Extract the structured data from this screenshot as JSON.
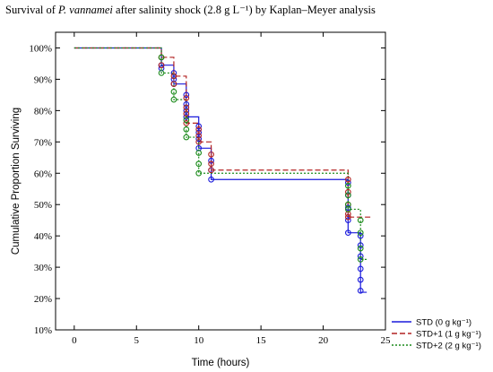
{
  "title": {
    "prefix": "Survival of ",
    "species": "P. vannamei",
    "suffix": " after salinity shock (2.8 g L⁻¹) by Kaplan–Meyer analysis"
  },
  "chart_data": {
    "type": "line",
    "subtype": "kaplan-meier step",
    "xlabel": "Time (hours)",
    "ylabel": "Cumulative Proportion Surviving",
    "xlim": [
      -1.5,
      25
    ],
    "ylim": [
      10,
      105
    ],
    "xticks": [
      0,
      5,
      10,
      15,
      20,
      25
    ],
    "yticks": [
      10,
      20,
      30,
      40,
      50,
      60,
      70,
      80,
      90,
      100
    ],
    "ytick_labels": [
      "10%",
      "20%",
      "30%",
      "40%",
      "50%",
      "60%",
      "70%",
      "80%",
      "90%",
      "100%"
    ],
    "grid": false,
    "legend_position": "bottom-right",
    "series": [
      {
        "name": "STD (0 g kg⁻¹)",
        "color": "#1a1adb",
        "line_style": "solid",
        "steps": [
          [
            0,
            100
          ],
          [
            7,
            94.5
          ],
          [
            8,
            88.5
          ],
          [
            9,
            78
          ],
          [
            10,
            68
          ],
          [
            11,
            58
          ],
          [
            22,
            41
          ],
          [
            23,
            22
          ]
        ],
        "end_x": 23.5,
        "markers": [
          [
            7,
            94.5
          ],
          [
            7,
            93.5
          ],
          [
            8,
            92
          ],
          [
            8,
            90
          ],
          [
            8,
            88.5
          ],
          [
            9,
            85
          ],
          [
            9,
            82
          ],
          [
            9,
            80
          ],
          [
            9,
            78
          ],
          [
            10,
            75
          ],
          [
            10,
            73
          ],
          [
            10,
            71
          ],
          [
            10,
            68
          ],
          [
            11,
            64
          ],
          [
            11,
            61
          ],
          [
            11,
            58
          ],
          [
            22,
            57
          ],
          [
            22,
            53
          ],
          [
            22,
            49
          ],
          [
            22,
            45
          ],
          [
            22,
            41
          ],
          [
            23,
            40
          ],
          [
            23,
            37
          ],
          [
            23,
            33.5
          ],
          [
            23,
            29.5
          ],
          [
            23,
            26
          ],
          [
            23,
            22.5
          ]
        ]
      },
      {
        "name": "STD+1 (1 g kg⁻¹)",
        "color": "#b22222",
        "line_style": "dashed",
        "steps": [
          [
            0,
            100
          ],
          [
            7,
            97
          ],
          [
            8,
            91
          ],
          [
            9,
            76
          ],
          [
            10,
            70
          ],
          [
            11,
            61
          ],
          [
            22,
            46
          ],
          [
            23,
            46
          ]
        ],
        "end_x": 24,
        "markers": [
          [
            7,
            97
          ],
          [
            7,
            94.5
          ],
          [
            8,
            91
          ],
          [
            8,
            88.5
          ],
          [
            9,
            84
          ],
          [
            9,
            81
          ],
          [
            9,
            79
          ],
          [
            9,
            76
          ],
          [
            10,
            74
          ],
          [
            10,
            72
          ],
          [
            10,
            70
          ],
          [
            11,
            66
          ],
          [
            11,
            63
          ],
          [
            11,
            61
          ],
          [
            22,
            58
          ],
          [
            22,
            54
          ],
          [
            22,
            50
          ],
          [
            22,
            47
          ],
          [
            22,
            46
          ]
        ]
      },
      {
        "name": "STD+2 (2 g kg⁻¹)",
        "color": "#1a8a1a",
        "line_style": "dotted",
        "steps": [
          [
            0,
            100
          ],
          [
            7,
            92
          ],
          [
            8,
            83.5
          ],
          [
            9,
            71.5
          ],
          [
            10,
            60
          ],
          [
            11,
            60
          ],
          [
            22,
            48.5
          ],
          [
            23,
            32.5
          ]
        ],
        "end_x": 23.5,
        "markers": [
          [
            7,
            97
          ],
          [
            7,
            92
          ],
          [
            8,
            86
          ],
          [
            8,
            83.5
          ],
          [
            9,
            77
          ],
          [
            9,
            74
          ],
          [
            9,
            71.5
          ],
          [
            10,
            66.5
          ],
          [
            10,
            63
          ],
          [
            10,
            60
          ],
          [
            22,
            56
          ],
          [
            22,
            53
          ],
          [
            22,
            50
          ],
          [
            22,
            48.5
          ],
          [
            23,
            45
          ],
          [
            23,
            41
          ],
          [
            23,
            36
          ],
          [
            23,
            32.5
          ]
        ]
      }
    ]
  }
}
